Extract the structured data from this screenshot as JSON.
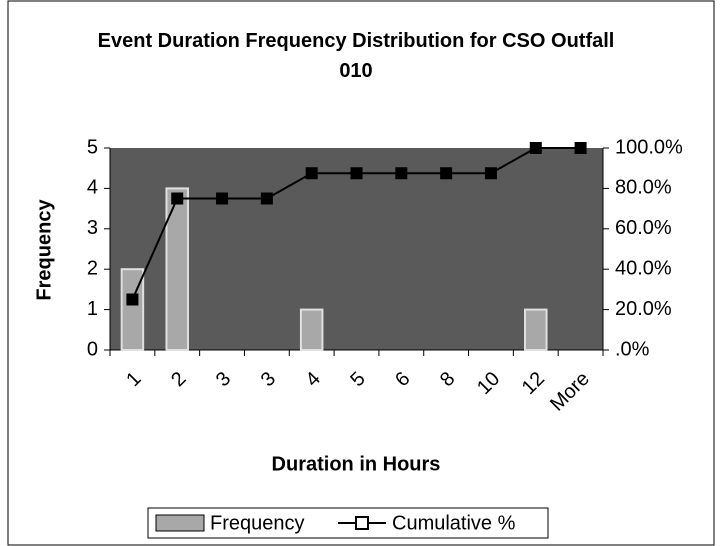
{
  "chart_data": {
    "type": "bar",
    "title": "Event Duration Frequency Distribution for CSO Outfall 010",
    "x_label": "Duration in Hours",
    "y_label": "Frequency",
    "categories": [
      "1",
      "2",
      "3",
      "3",
      "4",
      "5",
      "6",
      "8",
      "10",
      "12",
      "More"
    ],
    "series": [
      {
        "name": "Frequency",
        "color": "#a8a8a8",
        "values": [
          2,
          4,
          0,
          0,
          1,
          0,
          0,
          0,
          0,
          1,
          0
        ]
      },
      {
        "name": "Cumulative %",
        "color": "#000000",
        "axis": "y2",
        "values": [
          25,
          75,
          75,
          75,
          87.5,
          87.5,
          87.5,
          87.5,
          87.5,
          100,
          100
        ]
      }
    ],
    "ylim": [
      0,
      5
    ],
    "yticks": [
      0,
      1,
      2,
      3,
      4,
      5
    ],
    "y2lim": [
      0,
      100
    ],
    "y2ticks": [
      {
        "value": 0,
        "label": ".0%"
      },
      {
        "value": 20,
        "label": "20.0%"
      },
      {
        "value": 40,
        "label": "40.0%"
      },
      {
        "value": 60,
        "label": "60.0%"
      },
      {
        "value": 80,
        "label": "80.0%"
      },
      {
        "value": 100,
        "label": "100.0%"
      }
    ],
    "legend": "bottom"
  }
}
